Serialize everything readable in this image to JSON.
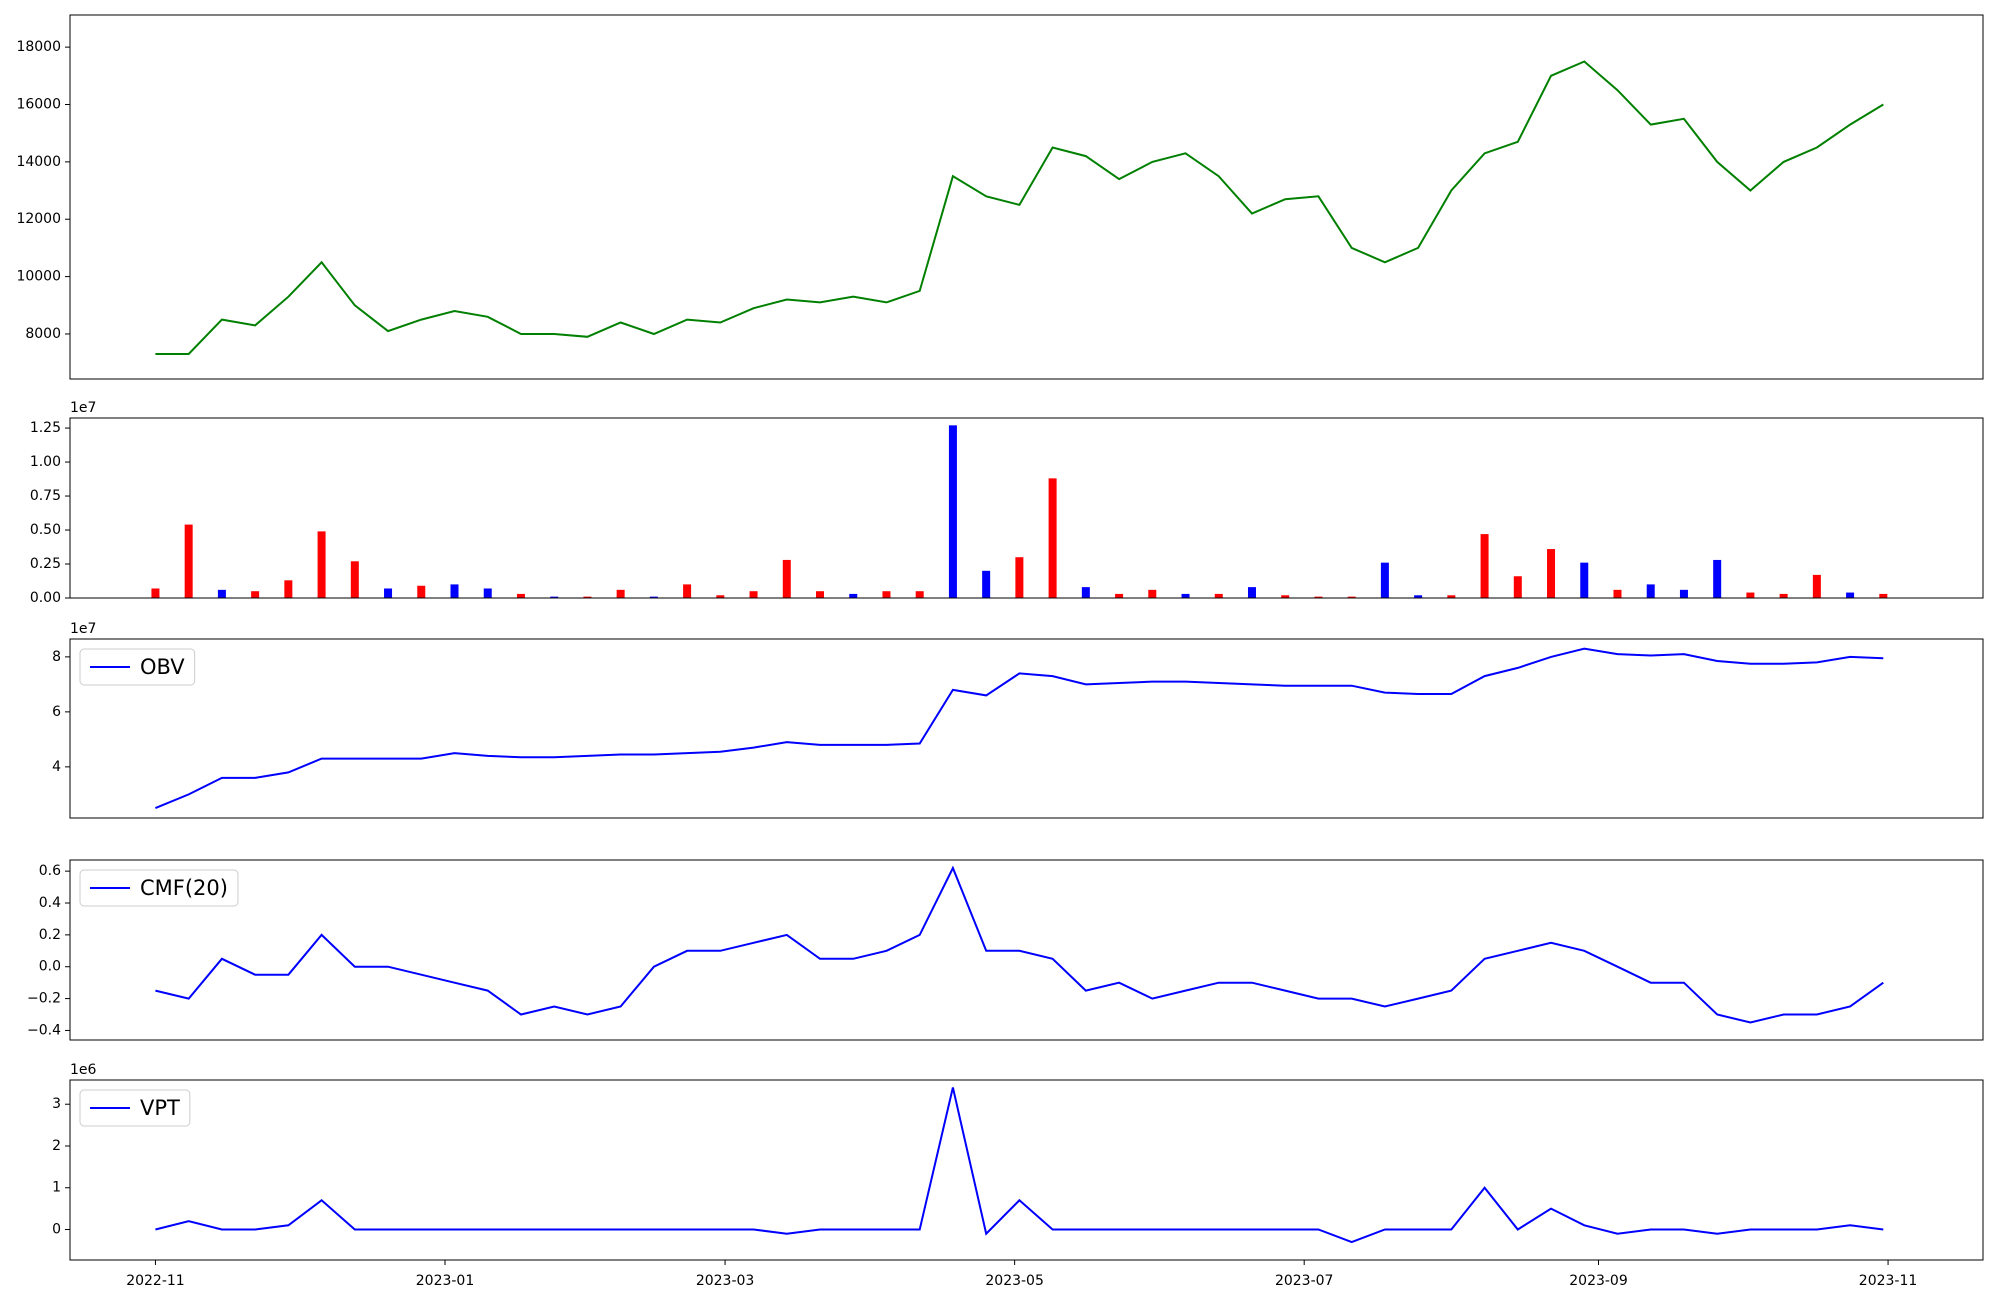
{
  "chart_data": [
    {
      "type": "line",
      "x": [
        0,
        7,
        14,
        21,
        28,
        35,
        42,
        49,
        56,
        63,
        70,
        77,
        84,
        91,
        98,
        105,
        112,
        119,
        126,
        133,
        140,
        147,
        154,
        161,
        168,
        175,
        182,
        189,
        196,
        203,
        210,
        217,
        224,
        231,
        238,
        245,
        252,
        259,
        266,
        273,
        280,
        287,
        294,
        301,
        308,
        315,
        322,
        329,
        336,
        343,
        350,
        357,
        364
      ],
      "xlim": [
        -18,
        385
      ],
      "ylim": [
        6430,
        19120
      ],
      "yticks": [
        8000,
        10000,
        12000,
        14000,
        16000,
        18000
      ],
      "series": [
        {
          "color": "#008000",
          "values": [
            7300,
            7300,
            8500,
            8300,
            9300,
            10500,
            9000,
            8100,
            8500,
            8800,
            8600,
            8000,
            8000,
            7900,
            8400,
            8000,
            8500,
            8400,
            8900,
            9200,
            9100,
            9300,
            9100,
            9500,
            13500,
            12800,
            12500,
            14500,
            14200,
            13400,
            14000,
            14300,
            13500,
            12200,
            12700,
            12800,
            11000,
            10500,
            11000,
            13000,
            14300,
            14700,
            17000,
            17500,
            16500,
            15300,
            15500,
            14000,
            13000,
            14000,
            14500,
            15300,
            16000
          ]
        }
      ]
    },
    {
      "type": "bar",
      "offset_label": "1e7",
      "x": [
        0,
        7,
        14,
        21,
        28,
        35,
        42,
        49,
        56,
        63,
        70,
        77,
        84,
        91,
        98,
        105,
        112,
        119,
        126,
        133,
        140,
        147,
        154,
        161,
        168,
        175,
        182,
        189,
        196,
        203,
        210,
        217,
        224,
        231,
        238,
        245,
        252,
        259,
        266,
        273,
        280,
        287,
        294,
        301,
        308,
        315,
        322,
        329,
        336,
        343,
        350,
        357,
        364
      ],
      "xlim": [
        -18,
        385
      ],
      "ylim": [
        0,
        13240000
      ],
      "yticks": [
        {
          "value": 0,
          "label": "0.00"
        },
        {
          "value": 2500000,
          "label": "0.25"
        },
        {
          "value": 5000000,
          "label": "0.50"
        },
        {
          "value": 7500000,
          "label": "0.75"
        },
        {
          "value": 10000000,
          "label": "1.00"
        },
        {
          "value": 12500000,
          "label": "1.25"
        }
      ],
      "values": [
        700000,
        5400000,
        600000,
        500000,
        1300000,
        4900000,
        2700000,
        700000,
        900000,
        1000000,
        700000,
        300000,
        100000,
        100000,
        600000,
        100000,
        1000000,
        200000,
        500000,
        2800000,
        500000,
        300000,
        500000,
        500000,
        12700000,
        2000000,
        3000000,
        8800000,
        800000,
        300000,
        600000,
        300000,
        300000,
        800000,
        200000,
        100000,
        100000,
        2600000,
        200000,
        200000,
        4700000,
        1600000,
        3600000,
        2600000,
        600000,
        1000000,
        600000,
        2800000,
        400000,
        300000,
        1700000,
        400000,
        300000
      ],
      "colors": [
        "#ff0000",
        "#ff0000",
        "#0000ff",
        "#ff0000",
        "#ff0000",
        "#ff0000",
        "#ff0000",
        "#0000ff",
        "#ff0000",
        "#0000ff",
        "#0000ff",
        "#ff0000",
        "#0000ff",
        "#ff0000",
        "#ff0000",
        "#0000ff",
        "#ff0000",
        "#ff0000",
        "#ff0000",
        "#ff0000",
        "#ff0000",
        "#0000ff",
        "#ff0000",
        "#ff0000",
        "#0000ff",
        "#0000ff",
        "#ff0000",
        "#ff0000",
        "#0000ff",
        "#ff0000",
        "#ff0000",
        "#0000ff",
        "#ff0000",
        "#0000ff",
        "#ff0000",
        "#ff0000",
        "#ff0000",
        "#0000ff",
        "#0000ff",
        "#ff0000",
        "#ff0000",
        "#ff0000",
        "#ff0000",
        "#0000ff",
        "#ff0000",
        "#0000ff",
        "#0000ff",
        "#0000ff",
        "#ff0000",
        "#ff0000",
        "#ff0000",
        "#0000ff",
        "#ff0000"
      ]
    },
    {
      "type": "line",
      "offset_label": "1e7",
      "x": [
        0,
        7,
        14,
        21,
        28,
        35,
        42,
        49,
        56,
        63,
        70,
        77,
        84,
        91,
        98,
        105,
        112,
        119,
        126,
        133,
        140,
        147,
        154,
        161,
        168,
        175,
        182,
        189,
        196,
        203,
        210,
        217,
        224,
        231,
        238,
        245,
        252,
        259,
        266,
        273,
        280,
        287,
        294,
        301,
        308,
        315,
        322,
        329,
        336,
        343,
        350,
        357,
        364
      ],
      "xlim": [
        -18,
        385
      ],
      "ylim": [
        21400000,
        86500000
      ],
      "yticks": [
        {
          "value": 40000000,
          "label": "4"
        },
        {
          "value": 60000000,
          "label": "6"
        },
        {
          "value": 80000000,
          "label": "8"
        }
      ],
      "series": [
        {
          "name": "OBV",
          "color": "#0000ff",
          "values": [
            25000000,
            30000000,
            36000000,
            36000000,
            38000000,
            43000000,
            43000000,
            43000000,
            43000000,
            45000000,
            44000000,
            43500000,
            43500000,
            44000000,
            44500000,
            44500000,
            45000000,
            45500000,
            47000000,
            49000000,
            48000000,
            48000000,
            48000000,
            48500000,
            68000000,
            66000000,
            74000000,
            73000000,
            70000000,
            70500000,
            71000000,
            71000000,
            70500000,
            70000000,
            69500000,
            69500000,
            69500000,
            67000000,
            66500000,
            66500000,
            73000000,
            76000000,
            80000000,
            83000000,
            81000000,
            80500000,
            81000000,
            78500000,
            77500000,
            77500000,
            78000000,
            80000000,
            79500000
          ]
        }
      ]
    },
    {
      "type": "line",
      "x": [
        0,
        7,
        14,
        21,
        28,
        35,
        42,
        49,
        56,
        63,
        70,
        77,
        84,
        91,
        98,
        105,
        112,
        119,
        126,
        133,
        140,
        147,
        154,
        161,
        168,
        175,
        182,
        189,
        196,
        203,
        210,
        217,
        224,
        231,
        238,
        245,
        252,
        259,
        266,
        273,
        280,
        287,
        294,
        301,
        308,
        315,
        322,
        329,
        336,
        343,
        350,
        357,
        364
      ],
      "xlim": [
        -18,
        385
      ],
      "ylim": [
        -0.46,
        0.67
      ],
      "yticks": [
        {
          "value": -0.4,
          "label": "−0.4"
        },
        {
          "value": -0.2,
          "label": "−0.2"
        },
        {
          "value": 0,
          "label": "0.0"
        },
        0.2,
        0.4,
        0.6
      ],
      "series": [
        {
          "name": "CMF(20)",
          "color": "#0000ff",
          "values": [
            -0.15,
            -0.2,
            0.05,
            -0.05,
            -0.05,
            0.2,
            0.0,
            0.0,
            -0.05,
            -0.1,
            -0.15,
            -0.3,
            -0.25,
            -0.3,
            -0.25,
            0.0,
            0.1,
            0.1,
            0.15,
            0.2,
            0.05,
            0.05,
            0.1,
            0.2,
            0.62,
            0.1,
            0.1,
            0.05,
            -0.15,
            -0.1,
            -0.2,
            -0.15,
            -0.1,
            -0.1,
            -0.15,
            -0.2,
            -0.2,
            -0.25,
            -0.2,
            -0.15,
            0.05,
            0.1,
            0.15,
            0.1,
            0.0,
            -0.1,
            -0.1,
            -0.3,
            -0.35,
            -0.3,
            -0.3,
            -0.25,
            -0.1
          ]
        }
      ]
    },
    {
      "type": "line",
      "offset_label": "1e6",
      "x": [
        0,
        7,
        14,
        21,
        28,
        35,
        42,
        49,
        56,
        63,
        70,
        77,
        84,
        91,
        98,
        105,
        112,
        119,
        126,
        133,
        140,
        147,
        154,
        161,
        168,
        175,
        182,
        189,
        196,
        203,
        210,
        217,
        224,
        231,
        238,
        245,
        252,
        259,
        266,
        273,
        280,
        287,
        294,
        301,
        308,
        315,
        322,
        329,
        336,
        343,
        350,
        357,
        364
      ],
      "xlim": [
        -18,
        385
      ],
      "ylim": [
        -730000,
        3580000
      ],
      "yticks": [
        {
          "value": 0,
          "label": "0"
        },
        {
          "value": 1000000,
          "label": "1"
        },
        {
          "value": 2000000,
          "label": "2"
        },
        {
          "value": 3000000,
          "label": "3"
        }
      ],
      "xticks": [
        {
          "value": 0,
          "label": "2022-11"
        },
        {
          "value": 61,
          "label": "2023-01"
        },
        {
          "value": 120,
          "label": "2023-03"
        },
        {
          "value": 181,
          "label": "2023-05"
        },
        {
          "value": 242,
          "label": "2023-07"
        },
        {
          "value": 304,
          "label": "2023-09"
        },
        {
          "value": 365,
          "label": "2023-11"
        }
      ],
      "series": [
        {
          "name": "VPT",
          "color": "#0000ff",
          "values": [
            0,
            200000,
            0,
            0,
            100000,
            700000,
            0,
            0,
            0,
            0,
            0,
            0,
            0,
            0,
            0,
            0,
            0,
            0,
            0,
            -100000,
            0,
            0,
            0,
            0,
            3400000,
            -100000,
            700000,
            0,
            0,
            0,
            0,
            0,
            0,
            0,
            0,
            0,
            -300000,
            0,
            0,
            0,
            1000000,
            0,
            500000,
            100000,
            -100000,
            0,
            0,
            -100000,
            0,
            0,
            0,
            100000,
            0
          ]
        }
      ]
    }
  ]
}
